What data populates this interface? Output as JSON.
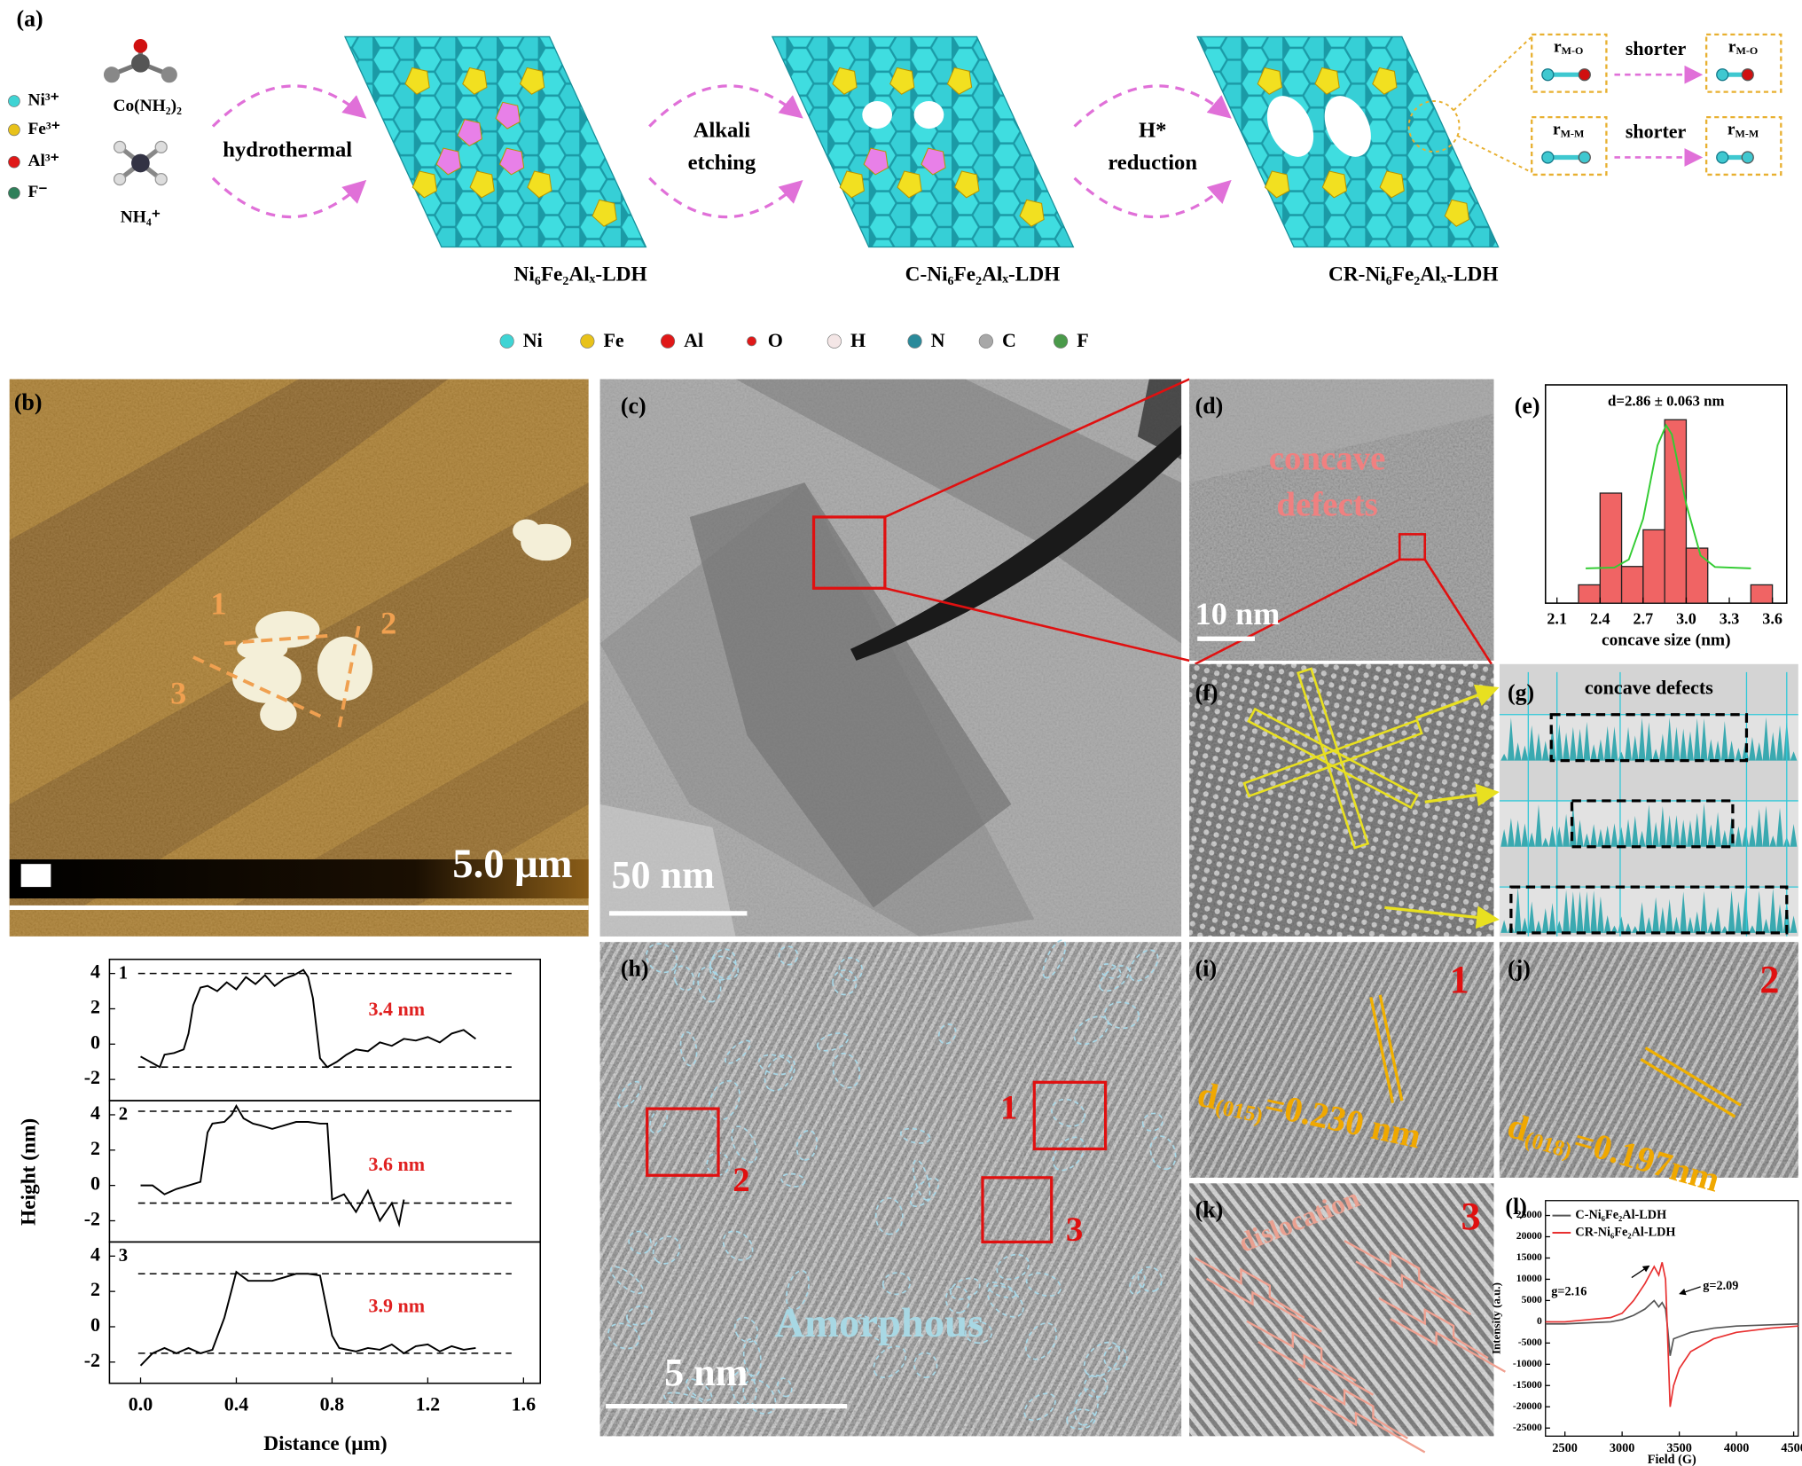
{
  "panel_labels": [
    "(a)",
    "(b)",
    "(c)",
    "(d)",
    "(e)",
    "(f)",
    "(g)",
    "(h)",
    "(i)",
    "(j)",
    "(k)",
    "(l)"
  ],
  "scheme": {
    "ions": [
      {
        "label": "Ni³⁺",
        "color": "#3fd4d4"
      },
      {
        "label": "Fe³⁺",
        "color": "#e8c21a"
      },
      {
        "label": "Al³⁺",
        "color": "#e01818"
      },
      {
        "label": "F⁻",
        "color": "#2f7f5a"
      }
    ],
    "reagents": [
      "Co(NH₂)₂",
      "NH₄⁺"
    ],
    "steps": [
      [
        "hydrothermal"
      ],
      [
        "Alkali",
        "etching"
      ],
      [
        "H*",
        "reduction"
      ]
    ],
    "products": [
      "Ni₆Fe₂Alₓ-LDH",
      "C-Ni₆Fe₂Alₓ-LDH",
      "CR-Ni₆Fe₂Alₓ-LDH"
    ],
    "bonds": [
      {
        "before": {
          "symbol": "r",
          "sub": "M-O"
        },
        "relation": "shorter",
        "after": {
          "symbol": "r",
          "sub": "M-O"
        }
      },
      {
        "before": {
          "symbol": "r",
          "sub": "M-M"
        },
        "relation": "shorter",
        "after": {
          "symbol": "r",
          "sub": "M-M"
        }
      }
    ],
    "atoms": [
      {
        "label": "Ni",
        "color": "#3fd4d4"
      },
      {
        "label": "Fe",
        "color": "#e8c21a"
      },
      {
        "label": "Al",
        "color": "#e01818"
      },
      {
        "label": "O",
        "color": "#e01818"
      },
      {
        "label": "H",
        "color": "#f4e6e6"
      },
      {
        "label": "N",
        "color": "#2a8a9a"
      },
      {
        "label": "C",
        "color": "#a8a8a8"
      },
      {
        "label": "F",
        "color": "#4a9a4a"
      }
    ]
  },
  "micrographs": {
    "b": {
      "scale_bar": "5.0 μm",
      "lines": [
        "1",
        "2",
        "3"
      ]
    },
    "c": {
      "scale_bar": "50 nm"
    },
    "d": {
      "text": [
        "concave",
        "defects"
      ],
      "scale_bar": "10 nm"
    },
    "g": {
      "title": "concave defects"
    },
    "h": {
      "regions": [
        "1",
        "2",
        "3"
      ],
      "text": "Amorphous",
      "scale_bar": "5 nm"
    },
    "i": {
      "region": "1",
      "spacing": {
        "symbol": "d",
        "sub": "(015)",
        "value": "=0.230 nm"
      }
    },
    "j": {
      "region": "2",
      "spacing": {
        "symbol": "d",
        "sub": "(018)",
        "value": "=0.197nm"
      }
    },
    "k": {
      "text": "dislocation",
      "region": "3"
    }
  },
  "chart_data": [
    {
      "type": "line",
      "color": "#000000",
      "x_label": "Distance (μm)",
      "y_label": "Height (nm)",
      "xlim": [
        -0.13,
        1.67
      ],
      "xticks": [
        {
          "value": 0,
          "label": "0.0"
        },
        0.4,
        0.8,
        1.2,
        1.6
      ],
      "ylim": [
        -3.2,
        4.8
      ],
      "yticks": [
        -2,
        0,
        2,
        4
      ],
      "annotation_color": "#e02020",
      "series": [
        {
          "name": "1",
          "annotation": "3.4 nm",
          "ref_lines": [
            4,
            -1.3
          ],
          "x": [
            0,
            0.04,
            0.08,
            0.1,
            0.14,
            0.18,
            0.2,
            0.22,
            0.25,
            0.28,
            0.32,
            0.36,
            0.4,
            0.44,
            0.48,
            0.52,
            0.56,
            0.6,
            0.64,
            0.68,
            0.7,
            0.72,
            0.75,
            0.78,
            0.82,
            0.86,
            0.9,
            0.95,
            1.0,
            1.05,
            1.1,
            1.15,
            1.2,
            1.25,
            1.3,
            1.35,
            1.4
          ],
          "values": [
            -0.7,
            -1.0,
            -1.3,
            -0.6,
            -0.5,
            -0.3,
            0.6,
            2.2,
            3.2,
            3.3,
            3.0,
            3.5,
            3.1,
            3.8,
            3.4,
            3.9,
            3.3,
            3.7,
            3.9,
            4.2,
            3.8,
            2.6,
            -0.8,
            -1.3,
            -1.0,
            -0.6,
            -0.3,
            -0.4,
            0.1,
            -0.1,
            0.3,
            0.2,
            0.4,
            0.1,
            0.6,
            0.8,
            0.3
          ]
        },
        {
          "name": "2",
          "annotation": "3.6 nm",
          "ref_lines": [
            4.2,
            -1.0
          ],
          "x": [
            0,
            0.05,
            0.1,
            0.15,
            0.2,
            0.25,
            0.28,
            0.3,
            0.35,
            0.38,
            0.4,
            0.43,
            0.47,
            0.5,
            0.55,
            0.6,
            0.65,
            0.7,
            0.75,
            0.78,
            0.8,
            0.85,
            0.9,
            0.95,
            1.0,
            1.05,
            1.08,
            1.1
          ],
          "values": [
            0,
            0,
            -0.5,
            -0.2,
            0,
            0.2,
            3.0,
            3.5,
            3.6,
            4.0,
            4.5,
            3.8,
            3.5,
            3.4,
            3.2,
            3.4,
            3.6,
            3.6,
            3.5,
            3.5,
            -0.8,
            -0.5,
            -1.5,
            -0.3,
            -2.0,
            -1.0,
            -2.2,
            -0.8
          ]
        },
        {
          "name": "3",
          "annotation": "3.9 nm",
          "ref_lines": [
            3.0,
            -1.5
          ],
          "x": [
            0,
            0.05,
            0.1,
            0.15,
            0.2,
            0.25,
            0.3,
            0.35,
            0.4,
            0.45,
            0.5,
            0.55,
            0.6,
            0.65,
            0.7,
            0.75,
            0.8,
            0.83,
            0.9,
            0.95,
            1.0,
            1.05,
            1.1,
            1.15,
            1.2,
            1.25,
            1.3,
            1.35,
            1.4
          ],
          "values": [
            -2.2,
            -1.5,
            -1.2,
            -1.5,
            -1.2,
            -1.5,
            -1.3,
            0.5,
            3.1,
            2.6,
            2.6,
            2.6,
            2.8,
            3.0,
            3.0,
            2.9,
            -0.5,
            -1.2,
            -1.4,
            -1.2,
            -1.3,
            -1.0,
            -1.5,
            -1.1,
            -1.0,
            -1.4,
            -1.1,
            -1.3,
            -1.2
          ]
        }
      ]
    },
    {
      "type": "histogram",
      "title": "d=2.86 ± 0.063 nm",
      "x_label": "concave size (nm)",
      "color": "#f06464",
      "bins": [
        2.25,
        2.4,
        2.55,
        2.7,
        2.85,
        3.0,
        3.15,
        3.3,
        3.45,
        3.6
      ],
      "counts": [
        1,
        6,
        2,
        4,
        10,
        3,
        0,
        0,
        1
      ],
      "xlim": [
        2.02,
        3.7
      ],
      "xticks": [
        2.1,
        2.4,
        2.7,
        {
          "value": 3,
          "label": "3.0"
        },
        3.3,
        3.6
      ],
      "ylim": [
        0,
        11.9
      ],
      "fit": {
        "color": "#33cc33",
        "x": [
          2.3,
          2.5,
          2.6,
          2.7,
          2.8,
          2.86,
          2.9,
          3.0,
          3.1,
          3.2,
          3.45
        ],
        "values": [
          1.9,
          1.94,
          2.38,
          4.6,
          8.6,
          9.7,
          9.2,
          5.4,
          2.6,
          1.97,
          1.9
        ]
      }
    },
    {
      "type": "line",
      "x_label": "Field (G)",
      "y_label": "Intensity (a.u.)",
      "xlim": [
        2330,
        4540
      ],
      "xticks": [
        2500,
        3000,
        3500,
        4000,
        4500
      ],
      "ylim": [
        -26900,
        28500
      ],
      "yticks": [
        25000,
        20000,
        15000,
        10000,
        5000,
        0,
        -5000,
        -10000,
        -15000,
        -20000,
        -25000
      ],
      "annotations": [
        "g=2.16",
        "g=2.09"
      ],
      "series": [
        {
          "name": "C-Ni₆Fe₂Al-LDH",
          "color": "#555555",
          "x": [
            2330,
            2500,
            2900,
            3000,
            3100,
            3200,
            3280,
            3320,
            3350,
            3380,
            3400,
            3420,
            3450,
            3500,
            3600,
            3800,
            4000,
            4300,
            4540
          ],
          "values": [
            -500,
            -500,
            0,
            500,
            1500,
            3000,
            5000,
            3500,
            4500,
            3000,
            -2000,
            -8000,
            -4000,
            -3500,
            -2500,
            -1500,
            -1000,
            -700,
            -500
          ]
        },
        {
          "name": "CR-Ni₆Fe₂Al-LDH",
          "color": "#e83030",
          "x": [
            2330,
            2500,
            2900,
            3000,
            3100,
            3200,
            3280,
            3320,
            3350,
            3380,
            3400,
            3420,
            3450,
            3500,
            3600,
            3800,
            4000,
            4300,
            4540
          ],
          "values": [
            0,
            0,
            1000,
            2000,
            5000,
            9000,
            13000,
            11000,
            14000,
            10000,
            -5000,
            -20000,
            -15000,
            -11000,
            -7000,
            -4000,
            -2500,
            -1500,
            -1000
          ]
        }
      ]
    }
  ]
}
